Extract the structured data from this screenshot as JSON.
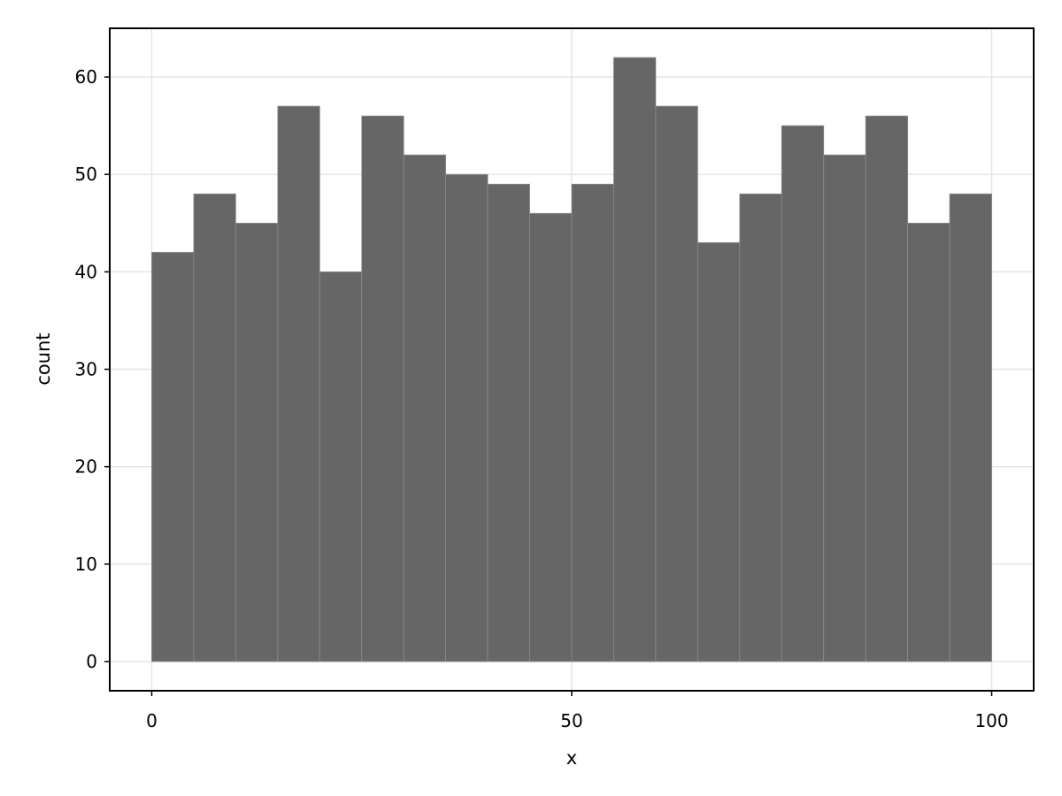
{
  "chart_data": {
    "type": "bar",
    "subtype": "histogram",
    "xlabel": "x",
    "ylabel": "count",
    "bin_width": 5,
    "bin_edges": [
      0,
      5,
      10,
      15,
      20,
      25,
      30,
      35,
      40,
      45,
      50,
      55,
      60,
      65,
      70,
      75,
      80,
      85,
      90,
      95,
      100
    ],
    "values": [
      42,
      48,
      45,
      57,
      40,
      56,
      52,
      50,
      49,
      46,
      49,
      62,
      57,
      43,
      48,
      55,
      52,
      56,
      45,
      48
    ],
    "xlim": [
      -5,
      105
    ],
    "ylim": [
      -3,
      65
    ],
    "xticks": [
      "0",
      "50",
      "100"
    ],
    "xtick_values": [
      0,
      50,
      100
    ],
    "yticks": [
      "0",
      "10",
      "20",
      "30",
      "40",
      "50",
      "60"
    ],
    "ytick_values": [
      0,
      10,
      20,
      30,
      40,
      50,
      60
    ],
    "grid": true,
    "bar_color": "#666666",
    "bar_edge_color": "#8c8c8c",
    "grid_color": "#e5e5e5"
  }
}
